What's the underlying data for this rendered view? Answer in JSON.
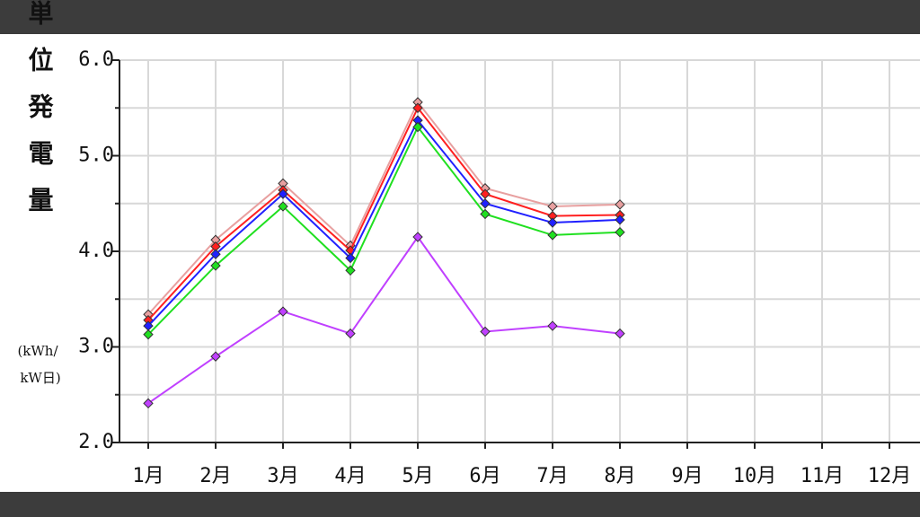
{
  "chart_data": {
    "type": "line",
    "y_label": "単位発電量",
    "y_unit": [
      "(kWh/",
      "kW日)"
    ],
    "categories": [
      "1月",
      "2月",
      "3月",
      "4月",
      "5月",
      "6月",
      "7月",
      "8月",
      "9月",
      "10月",
      "11月",
      "12月"
    ],
    "series": [
      {
        "color": "#e8a0a0",
        "values": [
          3.34,
          4.12,
          4.71,
          4.06,
          5.56,
          4.66,
          4.47,
          4.49,
          null,
          null,
          null,
          null
        ]
      },
      {
        "color": "#ff2020",
        "values": [
          3.28,
          4.05,
          4.64,
          4.01,
          5.5,
          4.6,
          4.37,
          4.38,
          null,
          null,
          null,
          null
        ]
      },
      {
        "color": "#2020ff",
        "values": [
          3.22,
          3.97,
          4.6,
          3.93,
          5.37,
          4.5,
          4.3,
          4.33,
          null,
          null,
          null,
          null
        ]
      },
      {
        "color": "#20e020",
        "values": [
          3.13,
          3.85,
          4.47,
          3.8,
          5.3,
          4.39,
          4.17,
          4.2,
          null,
          null,
          null,
          null
        ]
      },
      {
        "color": "#c040ff",
        "values": [
          2.41,
          2.9,
          3.37,
          3.14,
          4.15,
          3.16,
          3.22,
          3.14,
          null,
          null,
          null,
          null
        ]
      }
    ],
    "ylim": [
      2,
      6
    ],
    "yticks": [
      {
        "value": 2,
        "label": "2.0"
      },
      {
        "value": 3,
        "label": "3.0"
      },
      {
        "value": 4,
        "label": "4.0"
      },
      {
        "value": 5,
        "label": "5.0"
      },
      {
        "value": 6,
        "label": "6.0"
      }
    ],
    "minor_yticks": [
      2.5,
      3.5,
      4.5,
      5.5
    ],
    "grid": true
  }
}
